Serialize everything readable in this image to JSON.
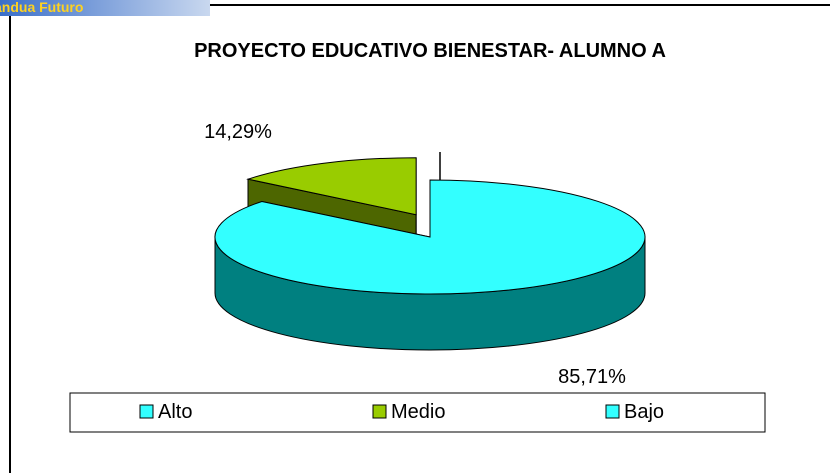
{
  "banner": "andua Futuro",
  "chart_data": {
    "type": "pie3d",
    "title": "PROYECTO EDUCATIVO BIENESTAR- ALUMNO A",
    "categories": [
      "Alto",
      "Medio",
      "Bajo"
    ],
    "values": [
      85.71,
      14.29,
      0
    ],
    "value_labels": [
      "85,71%",
      "14,29%",
      null
    ],
    "colors": [
      "#33ffff",
      "#99cc00",
      "#33ffff"
    ],
    "side_colors": [
      "#008080",
      "#4d6600",
      "#008080"
    ],
    "legend": "bottom"
  }
}
